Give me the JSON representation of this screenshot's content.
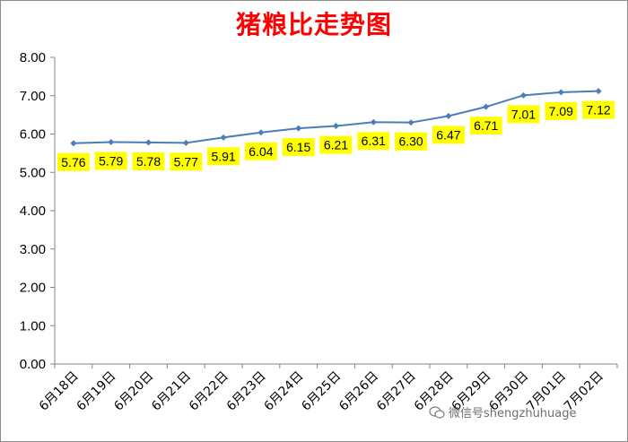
{
  "chart_data": {
    "type": "line",
    "title": "猪粮比走势图",
    "categories": [
      "6月18日",
      "6月19日",
      "6月20日",
      "6月21日",
      "6月22日",
      "6月23日",
      "6月24日",
      "6月25日",
      "6月26日",
      "6月27日",
      "6月28日",
      "6月29日",
      "6月30日",
      "7月01日",
      "7月02日"
    ],
    "series": [
      {
        "values": [
          5.76,
          5.79,
          5.78,
          5.77,
          5.91,
          6.04,
          6.15,
          6.21,
          6.31,
          6.3,
          6.47,
          6.71,
          7.01,
          7.09,
          7.12
        ]
      }
    ],
    "data_labels": [
      "5.76",
      "5.79",
      "5.78",
      "5.77",
      "5.91",
      "6.04",
      "6.15",
      "6.21",
      "6.31",
      "6.30",
      "6.47",
      "6.71",
      "7.01",
      "7.09",
      "7.12"
    ],
    "y_ticks": [
      "0.00",
      "1.00",
      "2.00",
      "3.00",
      "4.00",
      "5.00",
      "6.00",
      "7.00",
      "8.00"
    ],
    "ylim": [
      0,
      8
    ],
    "grid": false,
    "colors": {
      "line": "#4a7ebb",
      "label_bg": "#ffff00",
      "title": "#ff0000"
    }
  },
  "watermark": {
    "icon": "wechat-icon",
    "text": "微信号shengzhuhuage"
  }
}
